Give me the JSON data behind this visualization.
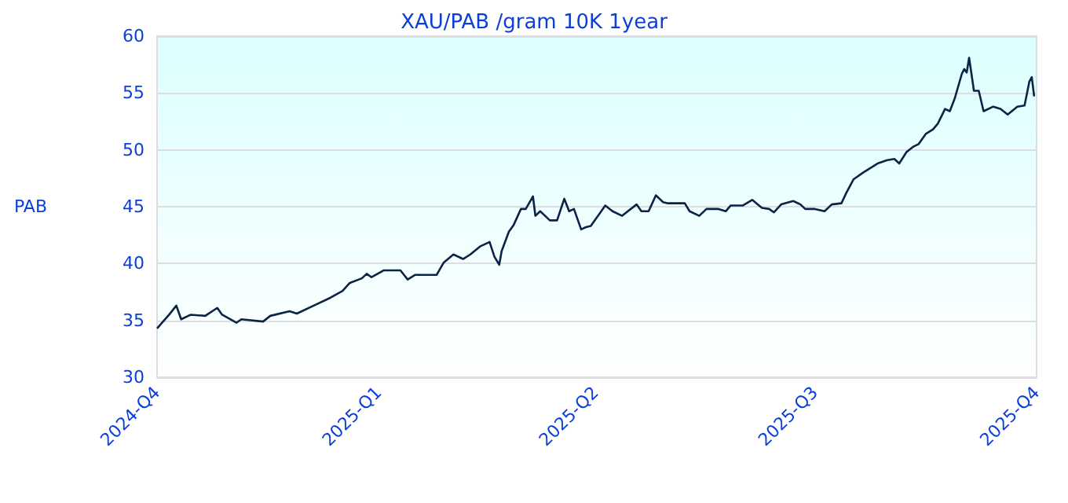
{
  "chart_data": {
    "type": "line",
    "title": "XAU/PAB /gram 10K 1year",
    "ylabel": "PAB",
    "xlim": [
      "2024-10-01",
      "2025-10-01"
    ],
    "xticks": [
      {
        "value": "2024-10-01",
        "label": "2024-Q4"
      },
      {
        "value": "2025-01-01",
        "label": "2025-Q1"
      },
      {
        "value": "2025-04-01",
        "label": "2025-Q2"
      },
      {
        "value": "2025-07-01",
        "label": "2025-Q3"
      },
      {
        "value": "2025-10-01",
        "label": "2025-Q4"
      }
    ],
    "ylim": [
      30,
      60
    ],
    "yticks": [
      30,
      35,
      40,
      45,
      50,
      55,
      60
    ],
    "grid": "y",
    "marker": "none",
    "line_style": "solid",
    "series": [
      {
        "color": "#0b2345",
        "x": [
          "2024-10-01",
          "2024-10-06",
          "2024-10-09",
          "2024-10-11",
          "2024-10-15",
          "2024-10-21",
          "2024-10-26",
          "2024-10-28",
          "2024-11-03",
          "2024-11-05",
          "2024-11-14",
          "2024-11-17",
          "2024-11-25",
          "2024-11-28",
          "2024-12-05",
          "2024-12-12",
          "2024-12-17",
          "2024-12-20",
          "2024-12-25",
          "2024-12-27",
          "2024-12-29",
          "2025-01-03",
          "2025-01-10",
          "2025-01-13",
          "2025-01-16",
          "2025-01-25",
          "2025-01-28",
          "2025-02-01",
          "2025-02-05",
          "2025-02-08",
          "2025-02-12",
          "2025-02-16",
          "2025-02-18",
          "2025-02-20",
          "2025-02-21",
          "2025-02-24",
          "2025-02-26",
          "2025-03-01",
          "2025-03-03",
          "2025-03-06",
          "2025-03-07",
          "2025-03-09",
          "2025-03-13",
          "2025-03-16",
          "2025-03-19",
          "2025-03-21",
          "2025-03-23",
          "2025-03-26",
          "2025-03-28",
          "2025-03-30",
          "2025-04-03",
          "2025-04-05",
          "2025-04-08",
          "2025-04-12",
          "2025-04-18",
          "2025-04-20",
          "2025-04-23",
          "2025-04-26",
          "2025-04-29",
          "2025-05-01",
          "2025-05-08",
          "2025-05-10",
          "2025-05-14",
          "2025-05-17",
          "2025-05-22",
          "2025-05-25",
          "2025-05-27",
          "2025-06-01",
          "2025-06-05",
          "2025-06-09",
          "2025-06-12",
          "2025-06-14",
          "2025-06-17",
          "2025-06-22",
          "2025-06-25",
          "2025-06-27",
          "2025-07-01",
          "2025-07-05",
          "2025-07-08",
          "2025-07-12",
          "2025-07-14",
          "2025-07-17",
          "2025-07-21",
          "2025-07-24",
          "2025-07-27",
          "2025-07-31",
          "2025-08-03",
          "2025-08-05",
          "2025-08-08",
          "2025-08-11",
          "2025-08-13",
          "2025-08-16",
          "2025-08-19",
          "2025-08-21",
          "2025-08-24",
          "2025-08-26",
          "2025-08-28",
          "2025-08-31",
          "2025-09-01",
          "2025-09-02",
          "2025-09-03",
          "2025-09-05",
          "2025-09-07",
          "2025-09-09",
          "2025-09-13",
          "2025-09-16",
          "2025-09-19",
          "2025-09-23",
          "2025-09-26",
          "2025-09-28",
          "2025-09-29",
          "2025-09-30"
        ],
        "values": [
          34.3,
          35.5,
          36.3,
          35.1,
          35.5,
          35.4,
          36.1,
          35.5,
          34.8,
          35.1,
          34.9,
          35.4,
          35.8,
          35.6,
          36.3,
          37.0,
          37.6,
          38.3,
          38.7,
          39.1,
          38.8,
          39.4,
          39.4,
          38.6,
          39.0,
          39.0,
          40.1,
          40.8,
          40.4,
          40.8,
          41.5,
          41.9,
          40.6,
          39.9,
          41.1,
          42.8,
          43.4,
          44.8,
          44.8,
          45.9,
          44.2,
          44.6,
          43.8,
          43.8,
          45.7,
          44.6,
          44.8,
          43.0,
          43.2,
          43.3,
          44.5,
          45.1,
          44.6,
          44.2,
          45.2,
          44.6,
          44.6,
          46.0,
          45.4,
          45.3,
          45.3,
          44.6,
          44.2,
          44.8,
          44.8,
          44.6,
          45.1,
          45.1,
          45.6,
          44.9,
          44.8,
          44.5,
          45.2,
          45.5,
          45.2,
          44.8,
          44.8,
          44.6,
          45.2,
          45.3,
          46.2,
          47.4,
          48.0,
          48.4,
          48.8,
          49.1,
          49.2,
          48.8,
          49.8,
          50.3,
          50.5,
          51.4,
          51.8,
          52.3,
          53.6,
          53.4,
          54.5,
          56.7,
          57.1,
          56.8,
          58.1,
          55.2,
          55.2,
          53.4,
          53.8,
          53.6,
          53.1,
          53.8,
          53.9,
          56.0,
          56.4,
          54.7
        ]
      }
    ]
  }
}
